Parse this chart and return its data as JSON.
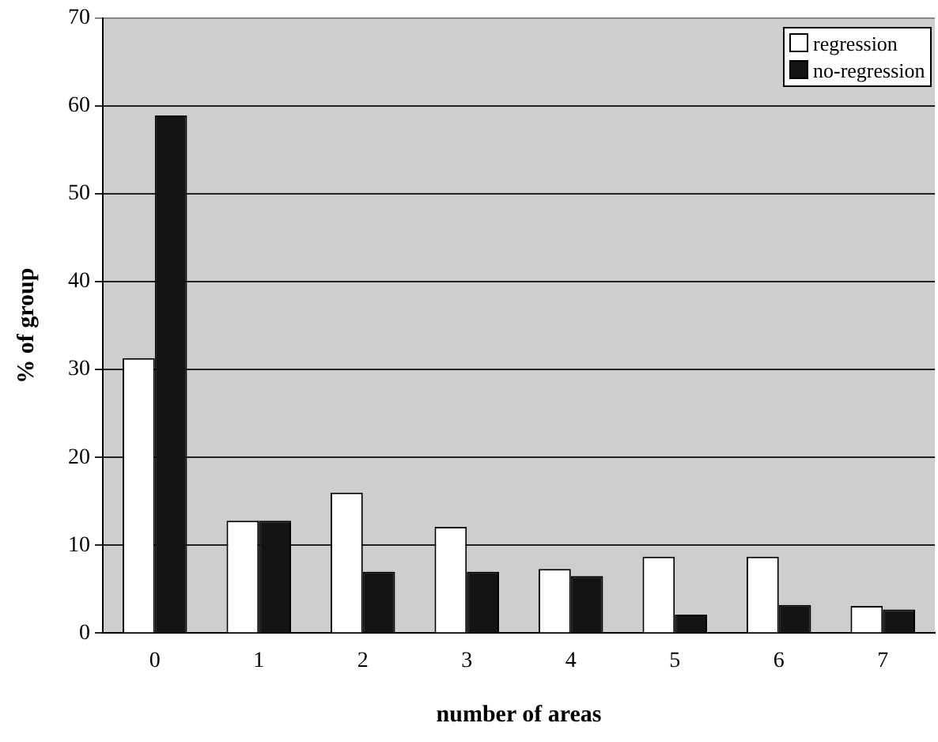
{
  "chart_data": {
    "type": "bar",
    "xlabel": "number of areas",
    "ylabel": "% of group",
    "categories": [
      "0",
      "1",
      "2",
      "3",
      "4",
      "5",
      "6",
      "7"
    ],
    "series": [
      {
        "name": "regression",
        "color": "#ffffff",
        "values": [
          31.3,
          12.8,
          16.0,
          12.1,
          7.3,
          8.7,
          8.7,
          3.1
        ]
      },
      {
        "name": "no-regression",
        "color": "#141414",
        "values": [
          58.9,
          12.8,
          7.0,
          7.0,
          6.5,
          2.1,
          3.2,
          2.7
        ]
      }
    ],
    "ylim": [
      0,
      70
    ],
    "yticks": [
      0,
      10,
      20,
      30,
      40,
      50,
      60,
      70
    ],
    "grid": "y",
    "legend": "top right"
  }
}
